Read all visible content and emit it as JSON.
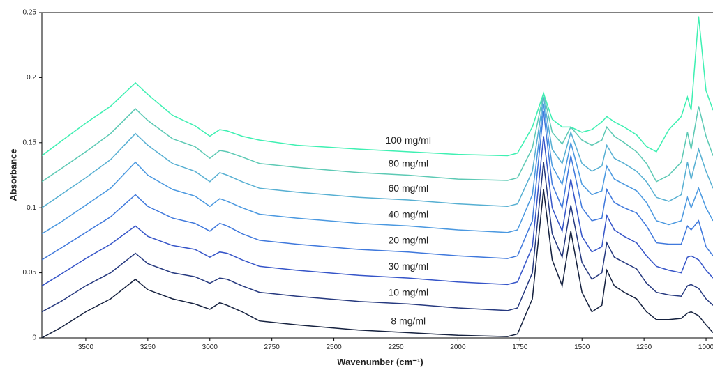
{
  "chart_data": {
    "type": "line",
    "x_label": "Wavenumber (cm⁻¹)",
    "y_label": "Absorbance",
    "xlim": [
      3677,
      972
    ],
    "ylim": [
      0,
      0.25
    ],
    "xticks": [
      3500,
      3250,
      3000,
      2750,
      2500,
      2250,
      2000,
      1750,
      1500,
      1250,
      1000
    ],
    "yticks": [
      0,
      0.05,
      0.1,
      0.15,
      0.2,
      0.25
    ],
    "x": [
      3677,
      3600,
      3500,
      3400,
      3300,
      3250,
      3150,
      3060,
      3000,
      2960,
      2930,
      2870,
      2800,
      2650,
      2400,
      2200,
      2000,
      1800,
      1760,
      1700,
      1655,
      1620,
      1580,
      1545,
      1500,
      1460,
      1420,
      1400,
      1370,
      1330,
      1280,
      1240,
      1200,
      1150,
      1100,
      1075,
      1060,
      1030,
      1000,
      972
    ],
    "series": [
      {
        "name": "8 mg/ml",
        "color": "#15213f",
        "values": [
          0,
          0.008,
          0.02,
          0.03,
          0.045,
          0.037,
          0.03,
          0.026,
          0.022,
          0.027,
          0.025,
          0.02,
          0.013,
          0.01,
          0.006,
          0.004,
          0.002,
          0.001,
          0.003,
          0.03,
          0.114,
          0.06,
          0.04,
          0.082,
          0.035,
          0.02,
          0.025,
          0.052,
          0.04,
          0.035,
          0.03,
          0.02,
          0.014,
          0.014,
          0.015,
          0.019,
          0.02,
          0.017,
          0.01,
          0.004
        ]
      },
      {
        "name": "10 mg/ml",
        "color": "#26397f",
        "values": [
          0.02,
          0.028,
          0.04,
          0.05,
          0.065,
          0.057,
          0.05,
          0.047,
          0.042,
          0.046,
          0.045,
          0.04,
          0.035,
          0.032,
          0.028,
          0.026,
          0.023,
          0.021,
          0.023,
          0.05,
          0.135,
          0.08,
          0.062,
          0.102,
          0.058,
          0.045,
          0.05,
          0.073,
          0.062,
          0.058,
          0.053,
          0.042,
          0.035,
          0.033,
          0.032,
          0.04,
          0.041,
          0.038,
          0.03,
          0.025
        ]
      },
      {
        "name": "30 mg/ml",
        "color": "#3554c8",
        "values": [
          0.04,
          0.049,
          0.061,
          0.072,
          0.086,
          0.078,
          0.071,
          0.068,
          0.062,
          0.066,
          0.065,
          0.06,
          0.055,
          0.052,
          0.048,
          0.046,
          0.043,
          0.041,
          0.043,
          0.07,
          0.155,
          0.1,
          0.082,
          0.122,
          0.078,
          0.066,
          0.07,
          0.094,
          0.083,
          0.078,
          0.073,
          0.063,
          0.055,
          0.052,
          0.05,
          0.062,
          0.063,
          0.06,
          0.052,
          0.046
        ]
      },
      {
        "name": "20 mg/ml",
        "color": "#3f78dc",
        "values": [
          0.06,
          0.069,
          0.081,
          0.093,
          0.11,
          0.101,
          0.092,
          0.088,
          0.082,
          0.088,
          0.086,
          0.08,
          0.075,
          0.072,
          0.068,
          0.066,
          0.063,
          0.061,
          0.063,
          0.09,
          0.174,
          0.118,
          0.1,
          0.14,
          0.1,
          0.09,
          0.092,
          0.114,
          0.104,
          0.1,
          0.096,
          0.086,
          0.073,
          0.072,
          0.072,
          0.086,
          0.083,
          0.09,
          0.07,
          0.063
        ]
      },
      {
        "name": "40 mg/ml",
        "color": "#4a98e0",
        "values": [
          0.08,
          0.089,
          0.102,
          0.115,
          0.135,
          0.125,
          0.114,
          0.109,
          0.101,
          0.107,
          0.105,
          0.1,
          0.095,
          0.092,
          0.088,
          0.086,
          0.083,
          0.081,
          0.083,
          0.11,
          0.18,
          0.132,
          0.118,
          0.15,
          0.118,
          0.11,
          0.113,
          0.132,
          0.122,
          0.118,
          0.113,
          0.104,
          0.09,
          0.087,
          0.09,
          0.108,
          0.1,
          0.115,
          0.1,
          0.09
        ]
      },
      {
        "name": "60 mg/ml",
        "color": "#56afd2",
        "values": [
          0.1,
          0.11,
          0.123,
          0.137,
          0.157,
          0.148,
          0.134,
          0.128,
          0.12,
          0.127,
          0.125,
          0.12,
          0.115,
          0.112,
          0.108,
          0.106,
          0.103,
          0.101,
          0.103,
          0.128,
          0.185,
          0.145,
          0.134,
          0.158,
          0.134,
          0.128,
          0.132,
          0.148,
          0.138,
          0.134,
          0.128,
          0.12,
          0.108,
          0.105,
          0.11,
          0.135,
          0.122,
          0.145,
          0.128,
          0.115
        ]
      },
      {
        "name": "80 mg/ml",
        "color": "#5cc9b4",
        "values": [
          0.12,
          0.13,
          0.143,
          0.157,
          0.176,
          0.167,
          0.153,
          0.147,
          0.138,
          0.144,
          0.143,
          0.139,
          0.134,
          0.131,
          0.127,
          0.125,
          0.122,
          0.121,
          0.123,
          0.146,
          0.188,
          0.158,
          0.149,
          0.162,
          0.152,
          0.148,
          0.152,
          0.162,
          0.155,
          0.15,
          0.143,
          0.134,
          0.12,
          0.125,
          0.135,
          0.158,
          0.145,
          0.178,
          0.155,
          0.14
        ]
      },
      {
        "name": "100 mg/ml",
        "color": "#3ef0b2",
        "values": [
          0.14,
          0.151,
          0.165,
          0.178,
          0.196,
          0.187,
          0.171,
          0.163,
          0.155,
          0.16,
          0.159,
          0.155,
          0.152,
          0.148,
          0.145,
          0.143,
          0.141,
          0.14,
          0.142,
          0.162,
          0.188,
          0.168,
          0.162,
          0.162,
          0.158,
          0.16,
          0.166,
          0.17,
          0.166,
          0.162,
          0.156,
          0.147,
          0.143,
          0.16,
          0.17,
          0.185,
          0.175,
          0.247,
          0.19,
          0.175
        ]
      }
    ]
  }
}
